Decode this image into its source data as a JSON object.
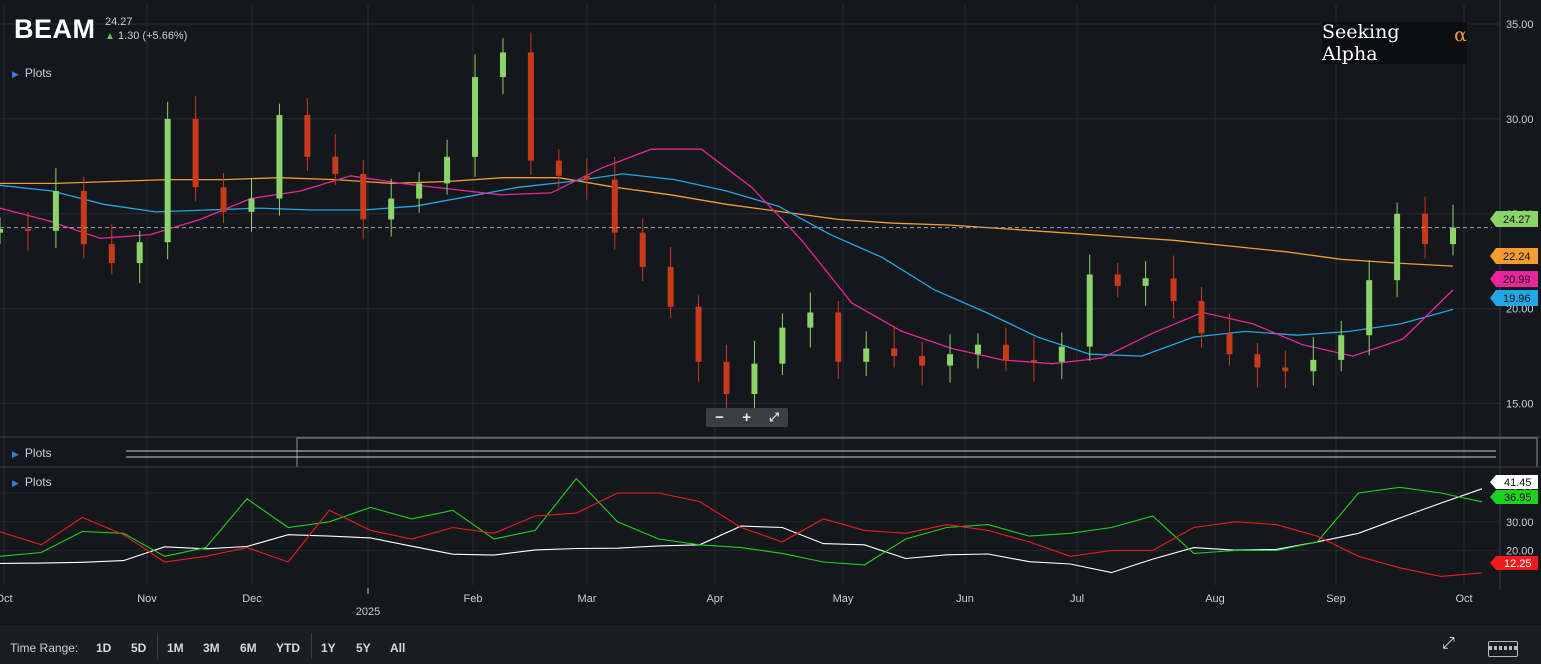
{
  "header": {
    "ticker": "BEAM",
    "price": "24.27",
    "change": "1.30 (+5.66%)",
    "change_icon": "up-arrow-icon"
  },
  "brand": {
    "name": "Seeking Alpha",
    "symbol": "α"
  },
  "panels": {
    "plots_label": "Plots"
  },
  "zoom": {
    "minus": "−",
    "plus": "+",
    "expand_icon": "expand-icon"
  },
  "time_range": {
    "label": "Time Range:",
    "buttons": [
      "1D",
      "5D",
      "1M",
      "3M",
      "6M",
      "YTD",
      "1Y",
      "5Y",
      "All"
    ],
    "fullscreen_icon": "fullscreen-icon",
    "keyboard_icon": "keyboard-icon"
  },
  "chart_data": [
    {
      "type": "candlestick",
      "title": "BEAM",
      "x_ticks": [
        "Oct",
        "Nov",
        "Dec",
        "Feb",
        "Mar",
        "Apr",
        "May",
        "Jun",
        "Jul",
        "Aug",
        "Sep",
        "Oct"
      ],
      "x_year_label": "2025",
      "y_ticks": [
        "15.00",
        "20.00",
        "25.00",
        "30.00",
        "35.00"
      ],
      "ylim": [
        13.5,
        36
      ],
      "last_price": 24.27,
      "markers": [
        {
          "label": "24.27",
          "color": "#8bd46a"
        },
        {
          "label": "22.24",
          "color": "#f39c32"
        },
        {
          "label": "20.99",
          "color": "#e8259a"
        },
        {
          "label": "19.96",
          "color": "#22a6e6"
        }
      ],
      "series": [
        {
          "color": "#f39c32",
          "values": [
            26.6,
            26.6,
            26.7,
            26.8,
            26.8,
            26.9,
            26.8,
            26.6,
            26.7,
            26.9,
            26.9,
            26.4,
            26.0,
            25.5,
            25.1,
            24.7,
            24.5,
            24.4,
            24.2,
            24.0,
            23.8,
            23.6,
            23.3,
            23.0,
            22.6,
            22.4,
            22.24
          ]
        },
        {
          "color": "#22a6e6",
          "values": [
            26.5,
            26.2,
            25.5,
            25.1,
            25.2,
            25.3,
            25.2,
            25.2,
            25.4,
            25.9,
            26.4,
            26.7,
            27.1,
            26.8,
            26.2,
            25.4,
            23.9,
            22.7,
            21.0,
            19.8,
            18.5,
            17.6,
            17.5,
            18.5,
            18.8,
            18.6,
            18.8,
            19.2,
            19.96
          ]
        },
        {
          "color": "#e8259a",
          "values": [
            25.3,
            24.6,
            23.7,
            23.9,
            24.7,
            25.8,
            26.2,
            27.0,
            26.6,
            26.3,
            26.0,
            26.1,
            27.4,
            28.4,
            28.4,
            26.4,
            23.6,
            20.3,
            18.8,
            17.9,
            17.3,
            17.1,
            17.4,
            18.7,
            19.8,
            19.2,
            18.1,
            17.5,
            18.4,
            20.99
          ]
        }
      ],
      "candles": {
        "x": [
          "Oct 1",
          "Oct 8",
          "Oct 15",
          "Oct 22",
          "Oct 29",
          "Nov 5",
          "Nov 12",
          "Nov 19",
          "Nov 26",
          "Dec 3",
          "Dec 10",
          "Dec 17",
          "Dec 24",
          "Dec 31",
          "Jan 7",
          "Jan 14",
          "Jan 21",
          "Jan 28",
          "Feb 4",
          "Feb 11",
          "Feb 18",
          "Feb 25",
          "Mar 4",
          "Mar 11",
          "Mar 18",
          "Mar 25",
          "Apr 1",
          "Apr 8",
          "Apr 15",
          "Apr 22",
          "Apr 29",
          "May 6",
          "May 13",
          "May 20",
          "May 27",
          "Jun 3",
          "Jun 10",
          "Jun 17",
          "Jun 24",
          "Jul 1",
          "Jul 8",
          "Jul 15",
          "Jul 22",
          "Jul 29",
          "Aug 5",
          "Aug 12",
          "Aug 19",
          "Aug 26",
          "Sep 2",
          "Sep 9",
          "Sep 16",
          "Sep 23",
          "Sep 26"
        ],
        "close": [
          24.2,
          24.1,
          26.2,
          23.4,
          22.4,
          23.5,
          30.0,
          26.4,
          25.1,
          25.8,
          30.2,
          28.0,
          27.1,
          24.7,
          25.8,
          26.6,
          28.0,
          32.2,
          33.5,
          27.8,
          27.0,
          26.8,
          24.0,
          22.2,
          20.1,
          17.2,
          15.5,
          17.1,
          19.0,
          19.8,
          17.2,
          17.9,
          17.5,
          17.0,
          17.6,
          18.1,
          17.3,
          17.2,
          18.0,
          21.8,
          21.2,
          21.6,
          20.4,
          18.7,
          17.6,
          16.9,
          16.7,
          17.3,
          18.6,
          21.5,
          25.0,
          23.4,
          24.27
        ]
      }
    },
    {
      "type": "line",
      "title": "",
      "y_ticks": [
        "20.00",
        "30.00",
        "40.00"
      ],
      "ylim": [
        8,
        48
      ],
      "markers": [
        {
          "label": "41.45",
          "color": "#ffffff"
        },
        {
          "label": "36.95",
          "color": "#1fd11f"
        },
        {
          "label": "12.25",
          "color": "#ee1c1c"
        }
      ],
      "series": [
        {
          "color": "#ffffff",
          "values": [
            15.5,
            15.6,
            15.9,
            16.5,
            21.3,
            20.6,
            21.4,
            25.5,
            25.0,
            24.4,
            21.5,
            18.7,
            18.4,
            20.2,
            20.7,
            20.8,
            21.6,
            22.0,
            28.5,
            28.0,
            22.4,
            22.0,
            17.2,
            18.5,
            18.8,
            16.1,
            15.3,
            12.3,
            17.0,
            21.0,
            20.1,
            20.4,
            23.0,
            26.0,
            31.3,
            36.5,
            41.45
          ]
        },
        {
          "color": "#1fd11f",
          "values": [
            18.0,
            19.3,
            26.6,
            26.0,
            18.0,
            21.0,
            38.0,
            28.0,
            30.0,
            35.0,
            31.0,
            34.0,
            24.0,
            27.0,
            45.0,
            30.0,
            24.0,
            22.0,
            21.0,
            19.0,
            16.0,
            15.0,
            24.0,
            28.0,
            29.0,
            25.0,
            26.0,
            28.0,
            32.0,
            19.0,
            20.0,
            20.0,
            23.0,
            40.0,
            42.0,
            40.0,
            36.95
          ]
        },
        {
          "color": "#ee1c1c",
          "values": [
            26.5,
            22.0,
            31.5,
            25.5,
            16.0,
            18.0,
            21.0,
            16.0,
            34.0,
            27.0,
            24.0,
            28.0,
            26.0,
            32.0,
            33.0,
            40.0,
            40.0,
            37.0,
            28.0,
            23.0,
            31.0,
            27.0,
            26.0,
            29.0,
            27.0,
            23.0,
            18.0,
            20.0,
            20.0,
            28.0,
            30.0,
            29.0,
            25.0,
            18.0,
            14.0,
            11.0,
            12.25
          ]
        }
      ]
    }
  ]
}
